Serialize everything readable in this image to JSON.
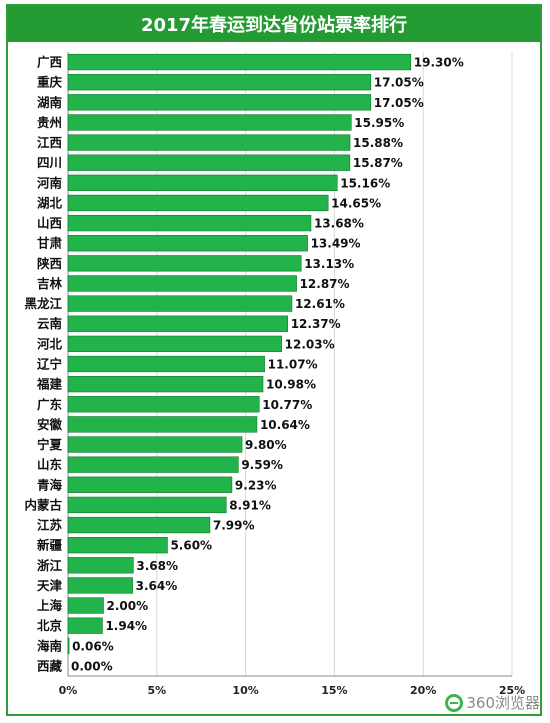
{
  "chart_data": {
    "type": "bar",
    "orientation": "horizontal",
    "title": "2017年春运到达省份站票率排行",
    "categories": [
      "广西",
      "重庆",
      "湖南",
      "贵州",
      "江西",
      "四川",
      "河南",
      "湖北",
      "山西",
      "甘肃",
      "陕西",
      "吉林",
      "黑龙江",
      "云南",
      "河北",
      "辽宁",
      "福建",
      "广东",
      "安徽",
      "宁夏",
      "山东",
      "青海",
      "内蒙古",
      "江苏",
      "新疆",
      "浙江",
      "天津",
      "上海",
      "北京",
      "海南",
      "西藏"
    ],
    "values": [
      19.3,
      17.05,
      17.05,
      15.95,
      15.88,
      15.87,
      15.16,
      14.65,
      13.68,
      13.49,
      13.13,
      12.87,
      12.61,
      12.37,
      12.03,
      11.07,
      10.98,
      10.77,
      10.64,
      9.8,
      9.59,
      9.23,
      8.91,
      7.99,
      5.6,
      3.68,
      3.64,
      2.0,
      1.94,
      0.06,
      0.0
    ],
    "value_labels": [
      "19.30%",
      "17.05%",
      "17.05%",
      "15.95%",
      "15.88%",
      "15.87%",
      "15.16%",
      "14.65%",
      "13.68%",
      "13.49%",
      "13.13%",
      "12.87%",
      "12.61%",
      "12.37%",
      "12.03%",
      "11.07%",
      "10.98%",
      "10.77%",
      "10.64%",
      "9.80%",
      "9.59%",
      "9.23%",
      "8.91%",
      "7.99%",
      "5.60%",
      "3.68%",
      "3.64%",
      "2.00%",
      "1.94%",
      "0.06%",
      "0.00%"
    ],
    "xlim": [
      0,
      25
    ],
    "xticks": [
      "0%",
      "5%",
      "10%",
      "15%",
      "20%",
      "25%"
    ],
    "grid": "vertical",
    "colors": {
      "bar": "#22b34a",
      "bar_stroke": "#127a2c",
      "title_bg": "#249a33",
      "grid": "#d8d8d8",
      "frame": "#2e9e3a"
    }
  },
  "brand": {
    "text": "360浏览器",
    "icon": "360-browser-logo-icon"
  }
}
